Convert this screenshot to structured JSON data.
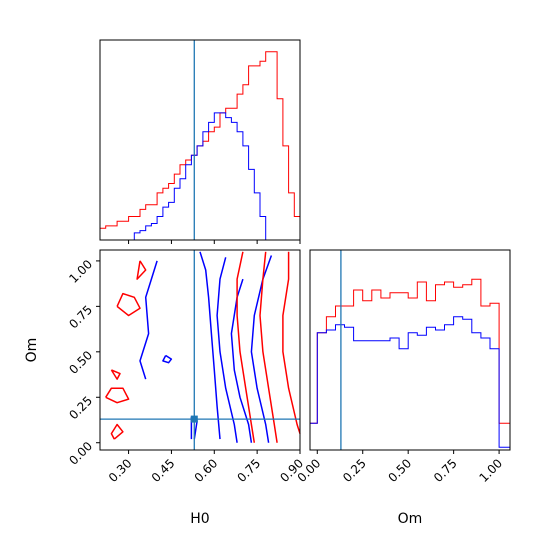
{
  "chart_data": {
    "type": "corner",
    "colors": {
      "red_series": "#ff0000",
      "blue_series": "#0000ff",
      "truth": "#1f77b4",
      "frame": "#000000"
    },
    "parameters": [
      "H0",
      "Om"
    ],
    "axes": {
      "H0": {
        "label": "H0",
        "range": [
          0.2,
          0.9
        ],
        "ticks": [
          0.3,
          0.45,
          0.6,
          0.75,
          0.9
        ],
        "tick_labels": [
          "0.30",
          "0.45",
          "0.60",
          "0.75",
          "0.90"
        ]
      },
      "Om": {
        "label": "Om",
        "range": [
          -0.04,
          1.06
        ],
        "ticks": [
          0.0,
          0.25,
          0.5,
          0.75,
          1.0
        ],
        "tick_labels": [
          "0.00",
          "0.25",
          "0.50",
          "0.75",
          "1.00"
        ]
      }
    },
    "truth": {
      "H0": 0.53,
      "Om": 0.13
    },
    "marginal_H0": {
      "bin_edges": [
        0.2,
        0.22,
        0.24,
        0.26,
        0.28,
        0.3,
        0.32,
        0.34,
        0.36,
        0.38,
        0.4,
        0.42,
        0.44,
        0.46,
        0.48,
        0.5,
        0.52,
        0.54,
        0.56,
        0.58,
        0.6,
        0.62,
        0.64,
        0.66,
        0.68,
        0.7,
        0.72,
        0.74,
        0.76,
        0.78,
        0.8,
        0.82,
        0.84,
        0.86,
        0.88,
        0.9
      ],
      "series": [
        {
          "color": "red",
          "values": [
            0.05,
            0.06,
            0.06,
            0.08,
            0.08,
            0.1,
            0.1,
            0.13,
            0.15,
            0.15,
            0.2,
            0.22,
            0.24,
            0.28,
            0.32,
            0.34,
            0.36,
            0.4,
            0.42,
            0.46,
            0.48,
            0.54,
            0.56,
            0.56,
            0.62,
            0.66,
            0.74,
            0.74,
            0.76,
            0.8,
            0.8,
            0.6,
            0.4,
            0.2,
            0.1
          ]
        },
        {
          "color": "blue",
          "values": [
            0,
            0,
            0,
            0,
            0,
            0,
            0.03,
            0.04,
            0.06,
            0.07,
            0.1,
            0.14,
            0.16,
            0.22,
            0.26,
            0.32,
            0.36,
            0.4,
            0.46,
            0.5,
            0.54,
            0.54,
            0.52,
            0.5,
            0.46,
            0.4,
            0.3,
            0.2,
            0.1,
            0,
            0,
            0,
            0,
            0,
            0
          ]
        }
      ],
      "ylim": [
        0,
        0.85
      ]
    },
    "marginal_Om": {
      "bin_edges": [
        -0.04,
        0.0,
        0.05,
        0.1,
        0.15,
        0.2,
        0.25,
        0.3,
        0.35,
        0.4,
        0.45,
        0.5,
        0.55,
        0.6,
        0.65,
        0.7,
        0.75,
        0.8,
        0.85,
        0.9,
        0.95,
        1.0,
        1.06
      ],
      "series": [
        {
          "color": "red",
          "values": [
            0.1,
            0.44,
            0.5,
            0.54,
            0.54,
            0.6,
            0.56,
            0.6,
            0.57,
            0.59,
            0.59,
            0.57,
            0.63,
            0.56,
            0.62,
            0.63,
            0.61,
            0.62,
            0.64,
            0.54,
            0.55,
            0.1
          ]
        },
        {
          "color": "blue",
          "values": [
            0.1,
            0.44,
            0.45,
            0.47,
            0.46,
            0.41,
            0.41,
            0.41,
            0.41,
            0.42,
            0.38,
            0.44,
            0.43,
            0.46,
            0.45,
            0.47,
            0.5,
            0.49,
            0.44,
            0.42,
            0.38,
            0.01
          ]
        }
      ],
      "ylim": [
        0,
        0.75
      ]
    },
    "joint": {
      "x": "H0",
      "y": "Om",
      "contours": [
        {
          "color": "blue",
          "points": [
            [
              0.55,
              1.05
            ],
            [
              0.57,
              0.95
            ],
            [
              0.58,
              0.8
            ],
            [
              0.59,
              0.6
            ],
            [
              0.6,
              0.4
            ],
            [
              0.61,
              0.2
            ],
            [
              0.62,
              0.02
            ]
          ]
        },
        {
          "color": "blue",
          "points": [
            [
              0.64,
              1.02
            ],
            [
              0.62,
              0.9
            ],
            [
              0.61,
              0.7
            ],
            [
              0.62,
              0.5
            ],
            [
              0.64,
              0.3
            ],
            [
              0.67,
              0.1
            ],
            [
              0.68,
              0.0
            ]
          ]
        },
        {
          "color": "blue",
          "points": [
            [
              0.7,
              0.9
            ],
            [
              0.68,
              0.8
            ],
            [
              0.66,
              0.6
            ],
            [
              0.67,
              0.4
            ],
            [
              0.69,
              0.25
            ],
            [
              0.72,
              0.1
            ],
            [
              0.73,
              0.0
            ]
          ]
        },
        {
          "color": "blue",
          "points": [
            [
              0.8,
              1.03
            ],
            [
              0.77,
              0.9
            ],
            [
              0.74,
              0.7
            ],
            [
              0.73,
              0.5
            ],
            [
              0.75,
              0.3
            ],
            [
              0.78,
              0.1
            ],
            [
              0.79,
              0.0
            ]
          ]
        },
        {
          "color": "blue",
          "points": [
            [
              0.4,
              1.0
            ],
            [
              0.38,
              0.9
            ],
            [
              0.36,
              0.8
            ],
            [
              0.37,
              0.6
            ],
            [
              0.34,
              0.45
            ],
            [
              0.36,
              0.35
            ]
          ]
        },
        {
          "color": "blue",
          "points": [
            [
              0.43,
              0.48
            ],
            [
              0.45,
              0.46
            ],
            [
              0.44,
              0.44
            ],
            [
              0.42,
              0.45
            ],
            [
              0.43,
              0.48
            ]
          ]
        },
        {
          "color": "blue",
          "points": [
            [
              0.52,
              0.02
            ],
            [
              0.52,
              0.14
            ],
            [
              0.54,
              0.12
            ],
            [
              0.53,
              0.02
            ]
          ]
        },
        {
          "color": "red",
          "points": [
            [
              0.7,
              1.05
            ],
            [
              0.68,
              0.9
            ],
            [
              0.68,
              0.7
            ],
            [
              0.69,
              0.5
            ],
            [
              0.71,
              0.3
            ],
            [
              0.73,
              0.1
            ],
            [
              0.74,
              0.0
            ]
          ]
        },
        {
          "color": "red",
          "points": [
            [
              0.78,
              1.05
            ],
            [
              0.77,
              0.9
            ],
            [
              0.76,
              0.7
            ],
            [
              0.77,
              0.5
            ],
            [
              0.79,
              0.3
            ],
            [
              0.81,
              0.1
            ],
            [
              0.82,
              0.0
            ]
          ]
        },
        {
          "color": "red",
          "points": [
            [
              0.86,
              1.05
            ],
            [
              0.86,
              0.9
            ],
            [
              0.84,
              0.7
            ],
            [
              0.84,
              0.5
            ],
            [
              0.86,
              0.3
            ],
            [
              0.89,
              0.1
            ],
            [
              0.9,
              0.05
            ]
          ]
        },
        {
          "color": "red",
          "points": [
            [
              0.26,
              0.75
            ],
            [
              0.3,
              0.7
            ],
            [
              0.34,
              0.74
            ],
            [
              0.32,
              0.8
            ],
            [
              0.28,
              0.82
            ],
            [
              0.26,
              0.75
            ]
          ]
        },
        {
          "color": "red",
          "points": [
            [
              0.22,
              0.25
            ],
            [
              0.26,
              0.22
            ],
            [
              0.3,
              0.24
            ],
            [
              0.28,
              0.3
            ],
            [
              0.24,
              0.3
            ],
            [
              0.22,
              0.25
            ]
          ]
        },
        {
          "color": "red",
          "points": [
            [
              0.24,
              0.4
            ],
            [
              0.27,
              0.38
            ],
            [
              0.26,
              0.35
            ],
            [
              0.24,
              0.4
            ]
          ]
        },
        {
          "color": "red",
          "points": [
            [
              0.25,
              0.02
            ],
            [
              0.28,
              0.06
            ],
            [
              0.26,
              0.1
            ],
            [
              0.24,
              0.05
            ],
            [
              0.25,
              0.02
            ]
          ]
        },
        {
          "color": "red",
          "points": [
            [
              0.34,
              1.0
            ],
            [
              0.36,
              0.95
            ],
            [
              0.33,
              0.9
            ],
            [
              0.34,
              1.0
            ]
          ]
        }
      ]
    },
    "show_grid": false
  }
}
